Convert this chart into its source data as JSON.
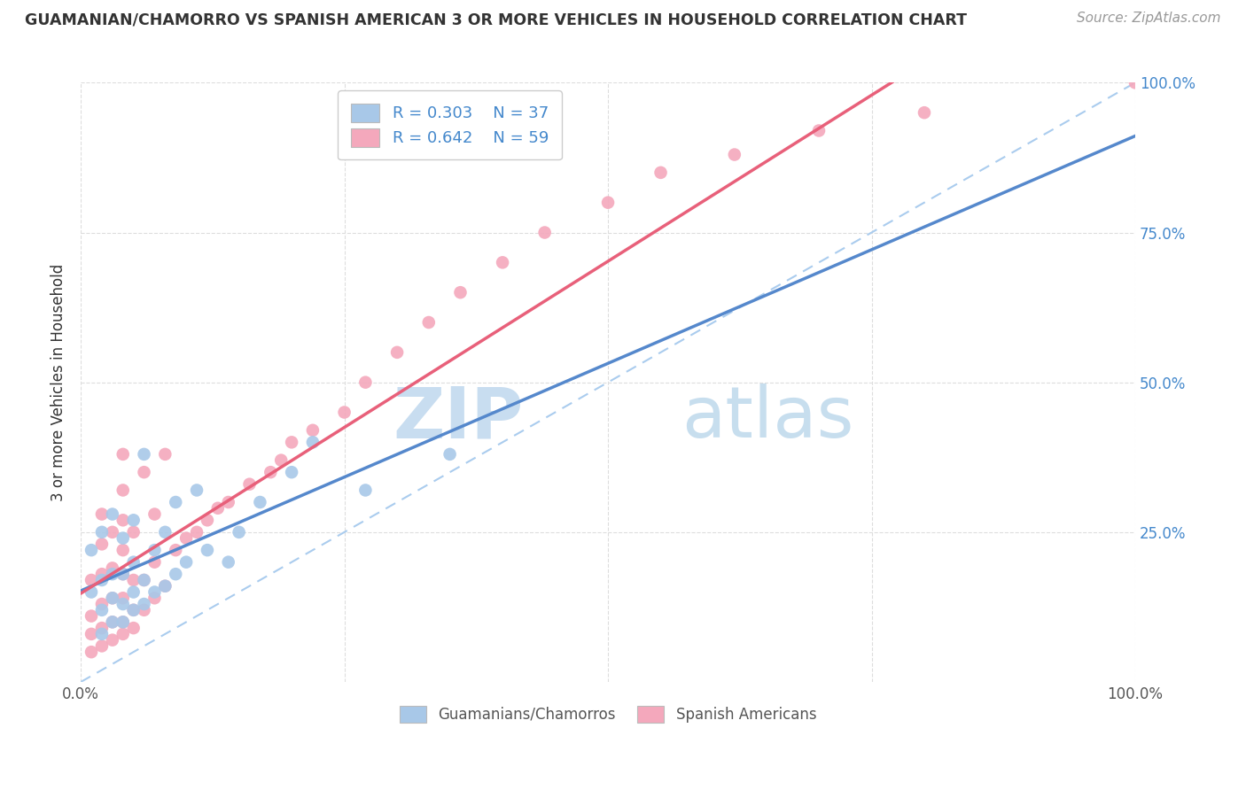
{
  "title": "GUAMANIAN/CHAMORRO VS SPANISH AMERICAN 3 OR MORE VEHICLES IN HOUSEHOLD CORRELATION CHART",
  "source": "Source: ZipAtlas.com",
  "ylabel": "3 or more Vehicles in Household",
  "blue_label": "Guamanians/Chamorros",
  "pink_label": "Spanish Americans",
  "blue_R": 0.303,
  "blue_N": 37,
  "pink_R": 0.642,
  "pink_N": 59,
  "blue_color": "#a8c8e8",
  "pink_color": "#f4a8bc",
  "blue_line_color": "#5588cc",
  "pink_line_color": "#e8607a",
  "diagonal_color": "#aaccee",
  "watermark_zip": "ZIP",
  "watermark_atlas": "atlas",
  "xlim": [
    0,
    1
  ],
  "ylim": [
    0,
    1
  ],
  "xticks": [
    0,
    0.25,
    0.5,
    0.75,
    1.0
  ],
  "yticks": [
    0.25,
    0.5,
    0.75,
    1.0
  ],
  "xticklabels": [
    "0.0%",
    "",
    "",
    "",
    "100.0%"
  ],
  "yticklabels": [
    "25.0%",
    "50.0%",
    "75.0%",
    "100.0%"
  ],
  "blue_x": [
    0.01,
    0.01,
    0.02,
    0.02,
    0.02,
    0.02,
    0.03,
    0.03,
    0.03,
    0.03,
    0.04,
    0.04,
    0.04,
    0.04,
    0.05,
    0.05,
    0.05,
    0.05,
    0.06,
    0.06,
    0.06,
    0.07,
    0.07,
    0.08,
    0.08,
    0.09,
    0.09,
    0.1,
    0.11,
    0.12,
    0.14,
    0.15,
    0.17,
    0.2,
    0.22,
    0.27,
    0.35
  ],
  "blue_y": [
    0.15,
    0.22,
    0.08,
    0.12,
    0.17,
    0.25,
    0.1,
    0.14,
    0.18,
    0.28,
    0.1,
    0.13,
    0.18,
    0.24,
    0.12,
    0.15,
    0.2,
    0.27,
    0.13,
    0.17,
    0.38,
    0.15,
    0.22,
    0.16,
    0.25,
    0.18,
    0.3,
    0.2,
    0.32,
    0.22,
    0.2,
    0.25,
    0.3,
    0.35,
    0.4,
    0.32,
    0.38
  ],
  "pink_x": [
    0.01,
    0.01,
    0.01,
    0.01,
    0.02,
    0.02,
    0.02,
    0.02,
    0.02,
    0.02,
    0.03,
    0.03,
    0.03,
    0.03,
    0.03,
    0.04,
    0.04,
    0.04,
    0.04,
    0.04,
    0.04,
    0.04,
    0.04,
    0.05,
    0.05,
    0.05,
    0.05,
    0.06,
    0.06,
    0.06,
    0.07,
    0.07,
    0.07,
    0.08,
    0.08,
    0.09,
    0.1,
    0.11,
    0.12,
    0.13,
    0.14,
    0.16,
    0.18,
    0.19,
    0.2,
    0.22,
    0.25,
    0.27,
    0.3,
    0.33,
    0.36,
    0.4,
    0.44,
    0.5,
    0.55,
    0.62,
    0.7,
    0.8,
    1.0
  ],
  "pink_y": [
    0.05,
    0.08,
    0.11,
    0.17,
    0.06,
    0.09,
    0.13,
    0.18,
    0.23,
    0.28,
    0.07,
    0.1,
    0.14,
    0.19,
    0.25,
    0.08,
    0.1,
    0.14,
    0.18,
    0.22,
    0.27,
    0.32,
    0.38,
    0.09,
    0.12,
    0.17,
    0.25,
    0.12,
    0.17,
    0.35,
    0.14,
    0.2,
    0.28,
    0.16,
    0.38,
    0.22,
    0.24,
    0.25,
    0.27,
    0.29,
    0.3,
    0.33,
    0.35,
    0.37,
    0.4,
    0.42,
    0.45,
    0.5,
    0.55,
    0.6,
    0.65,
    0.7,
    0.75,
    0.8,
    0.85,
    0.88,
    0.92,
    0.95,
    1.0
  ]
}
